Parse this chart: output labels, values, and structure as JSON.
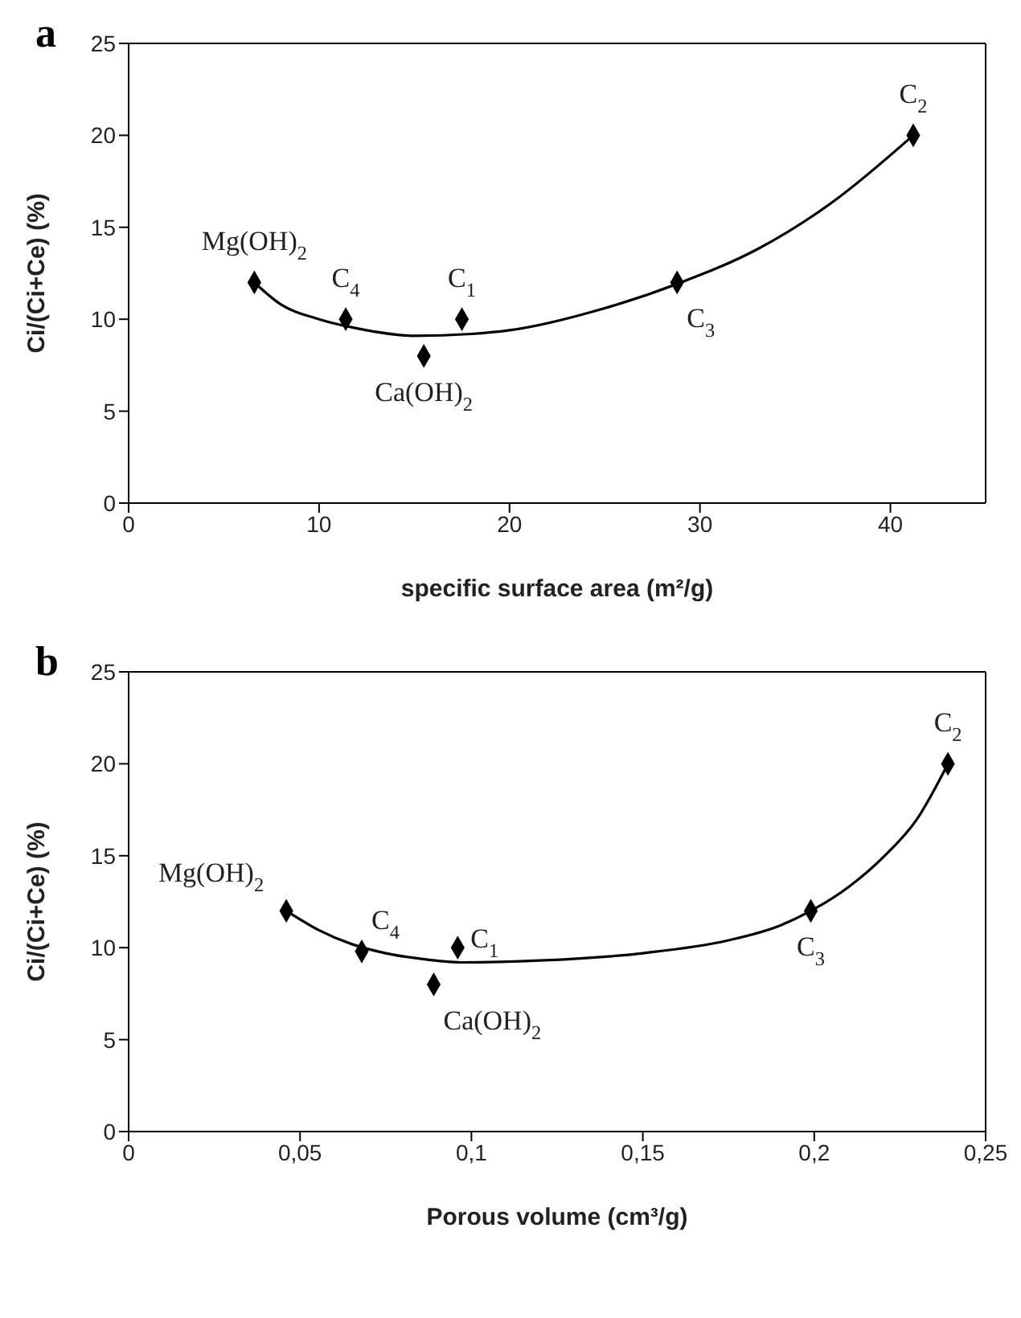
{
  "chart_data": [
    {
      "type": "scatter",
      "title": "a",
      "xlabel": "specific surface area (m²/g)",
      "ylabel": "Ci/(Ci+Ce) (%)",
      "xlim": [
        0,
        45
      ],
      "xticks": [
        0,
        10,
        20,
        30,
        40
      ],
      "ylim": [
        0,
        25
      ],
      "yticks": [
        0,
        5,
        10,
        15,
        20,
        25
      ],
      "series": [
        {
          "marker": "diamond",
          "color": "#000000",
          "x": [
            6.6,
            11.4,
            15.5,
            17.5,
            28.8,
            41.2
          ],
          "values": [
            12,
            10,
            8,
            10,
            12,
            20
          ]
        },
        {
          "type": "line",
          "marker": "none",
          "line_style": "solid",
          "color": "#000000",
          "x": [
            6.6,
            8,
            10,
            12,
            15,
            18,
            20,
            25,
            29,
            33,
            37,
            41.2
          ],
          "values": [
            12,
            10.8,
            10,
            9.5,
            9.1,
            9.2,
            9.4,
            10.6,
            12,
            13.8,
            16.4,
            20
          ]
        }
      ],
      "annotations": [
        {
          "text": "Mg(OH)$_{2}$",
          "x": 6.6,
          "y": 12
        },
        {
          "text": "C$_{4}$",
          "x": 11.4,
          "y": 10
        },
        {
          "text": "C$_{1}$",
          "x": 17.5,
          "y": 10
        },
        {
          "text": "Ca(OH)$_{2}$",
          "x": 15.5,
          "y": 8
        },
        {
          "text": "C$_{3}$",
          "x": 28.8,
          "y": 12
        },
        {
          "text": "C$_{2}$",
          "x": 41.2,
          "y": 20
        }
      ]
    },
    {
      "type": "scatter",
      "title": "b",
      "xlabel": "Porous volume (cm³/g)",
      "ylabel": "Ci/(Ci+Ce) (%)",
      "xlim": [
        0,
        0.25
      ],
      "xticks": [
        0,
        {
          "value": 0.05,
          "label": "0,05"
        },
        {
          "value": 0.1,
          "label": "0,1"
        },
        {
          "value": 0.15,
          "label": "0,15"
        },
        {
          "value": 0.2,
          "label": "0,2"
        },
        {
          "value": 0.25,
          "label": "0,25"
        }
      ],
      "ylim": [
        0,
        25
      ],
      "yticks": [
        0,
        5,
        10,
        15,
        20,
        25
      ],
      "series": [
        {
          "marker": "diamond",
          "color": "#000000",
          "x": [
            0.046,
            0.068,
            0.096,
            0.089,
            0.199,
            0.239
          ],
          "values": [
            12,
            9.8,
            10,
            8,
            12,
            20
          ]
        },
        {
          "type": "line",
          "marker": "none",
          "line_style": "solid",
          "color": "#000000",
          "x": [
            0.046,
            0.055,
            0.065,
            0.075,
            0.085,
            0.097,
            0.12,
            0.15,
            0.175,
            0.19,
            0.199,
            0.21,
            0.22,
            0.23,
            0.239
          ],
          "values": [
            12,
            11,
            10.2,
            9.7,
            9.4,
            9.2,
            9.3,
            9.7,
            10.4,
            11.2,
            12,
            13.3,
            14.9,
            17,
            20
          ]
        }
      ],
      "annotations": [
        {
          "text": "Mg(OH)$_{2}$",
          "x": 0.046,
          "y": 12
        },
        {
          "text": "C$_{4}$",
          "x": 0.068,
          "y": 9.8
        },
        {
          "text": "C$_{1}$",
          "x": 0.096,
          "y": 10
        },
        {
          "text": "Ca(OH)$_{2}$",
          "x": 0.089,
          "y": 8
        },
        {
          "text": "C$_{3}$",
          "x": 0.199,
          "y": 12
        },
        {
          "text": "C$_{2}$",
          "x": 0.239,
          "y": 20
        }
      ]
    }
  ]
}
